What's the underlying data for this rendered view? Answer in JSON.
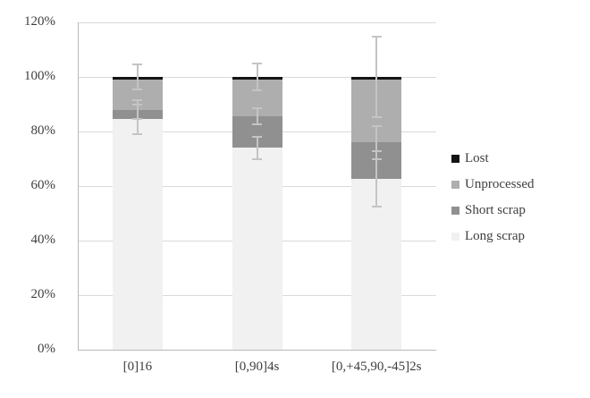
{
  "chart_data": {
    "type": "bar",
    "subtype": "stacked-percent-with-error-bars",
    "title": "",
    "xlabel": "",
    "ylabel": "",
    "categories": [
      "[0]16",
      "[0,90]4s",
      "[0,+45,90,-45]2s"
    ],
    "series": [
      {
        "name": "Long scrap",
        "color": "#f1f1f1",
        "values": [
          84.5,
          74.0,
          62.5
        ]
      },
      {
        "name": "Short scrap",
        "color": "#909090",
        "values": [
          3.5,
          11.5,
          13.5
        ]
      },
      {
        "name": "Unprocessed",
        "color": "#aeaeae",
        "values": [
          11.0,
          13.5,
          23.0
        ]
      },
      {
        "name": "Lost",
        "color": "#141414",
        "values": [
          1.0,
          1.0,
          1.0
        ]
      }
    ],
    "error_bars": [
      [
        {
          "at": 100.0,
          "plus_minus": 4.5
        },
        {
          "at": 88.0,
          "plus_minus": 3.4
        },
        {
          "at": 84.5,
          "plus_minus": 5.5
        }
      ],
      [
        {
          "at": 100.0,
          "plus_minus": 4.9
        },
        {
          "at": 85.5,
          "plus_minus": 3.0
        },
        {
          "at": 74.0,
          "plus_minus": 4.1
        }
      ],
      [
        {
          "at": 100.0,
          "plus_minus": 14.7
        },
        {
          "at": 76.0,
          "plus_minus": 6.0
        },
        {
          "at": 62.5,
          "plus_minus": 10.2
        }
      ]
    ],
    "y_axis": {
      "min": 0,
      "max": 120,
      "step": 20,
      "tick_labels": [
        "0%",
        "20%",
        "40%",
        "60%",
        "80%",
        "100%",
        "120%"
      ]
    },
    "grid": true,
    "legend_position": "right",
    "legend_order": [
      "Lost",
      "Unprocessed",
      "Short scrap",
      "Long scrap"
    ]
  },
  "style_colors": {
    "gridline": "#d9d9d9",
    "axis_line": "#b9b9b9",
    "tick_text": "#3e3e3e",
    "error_bar": "#c4c4c4",
    "background": "#ffffff"
  }
}
